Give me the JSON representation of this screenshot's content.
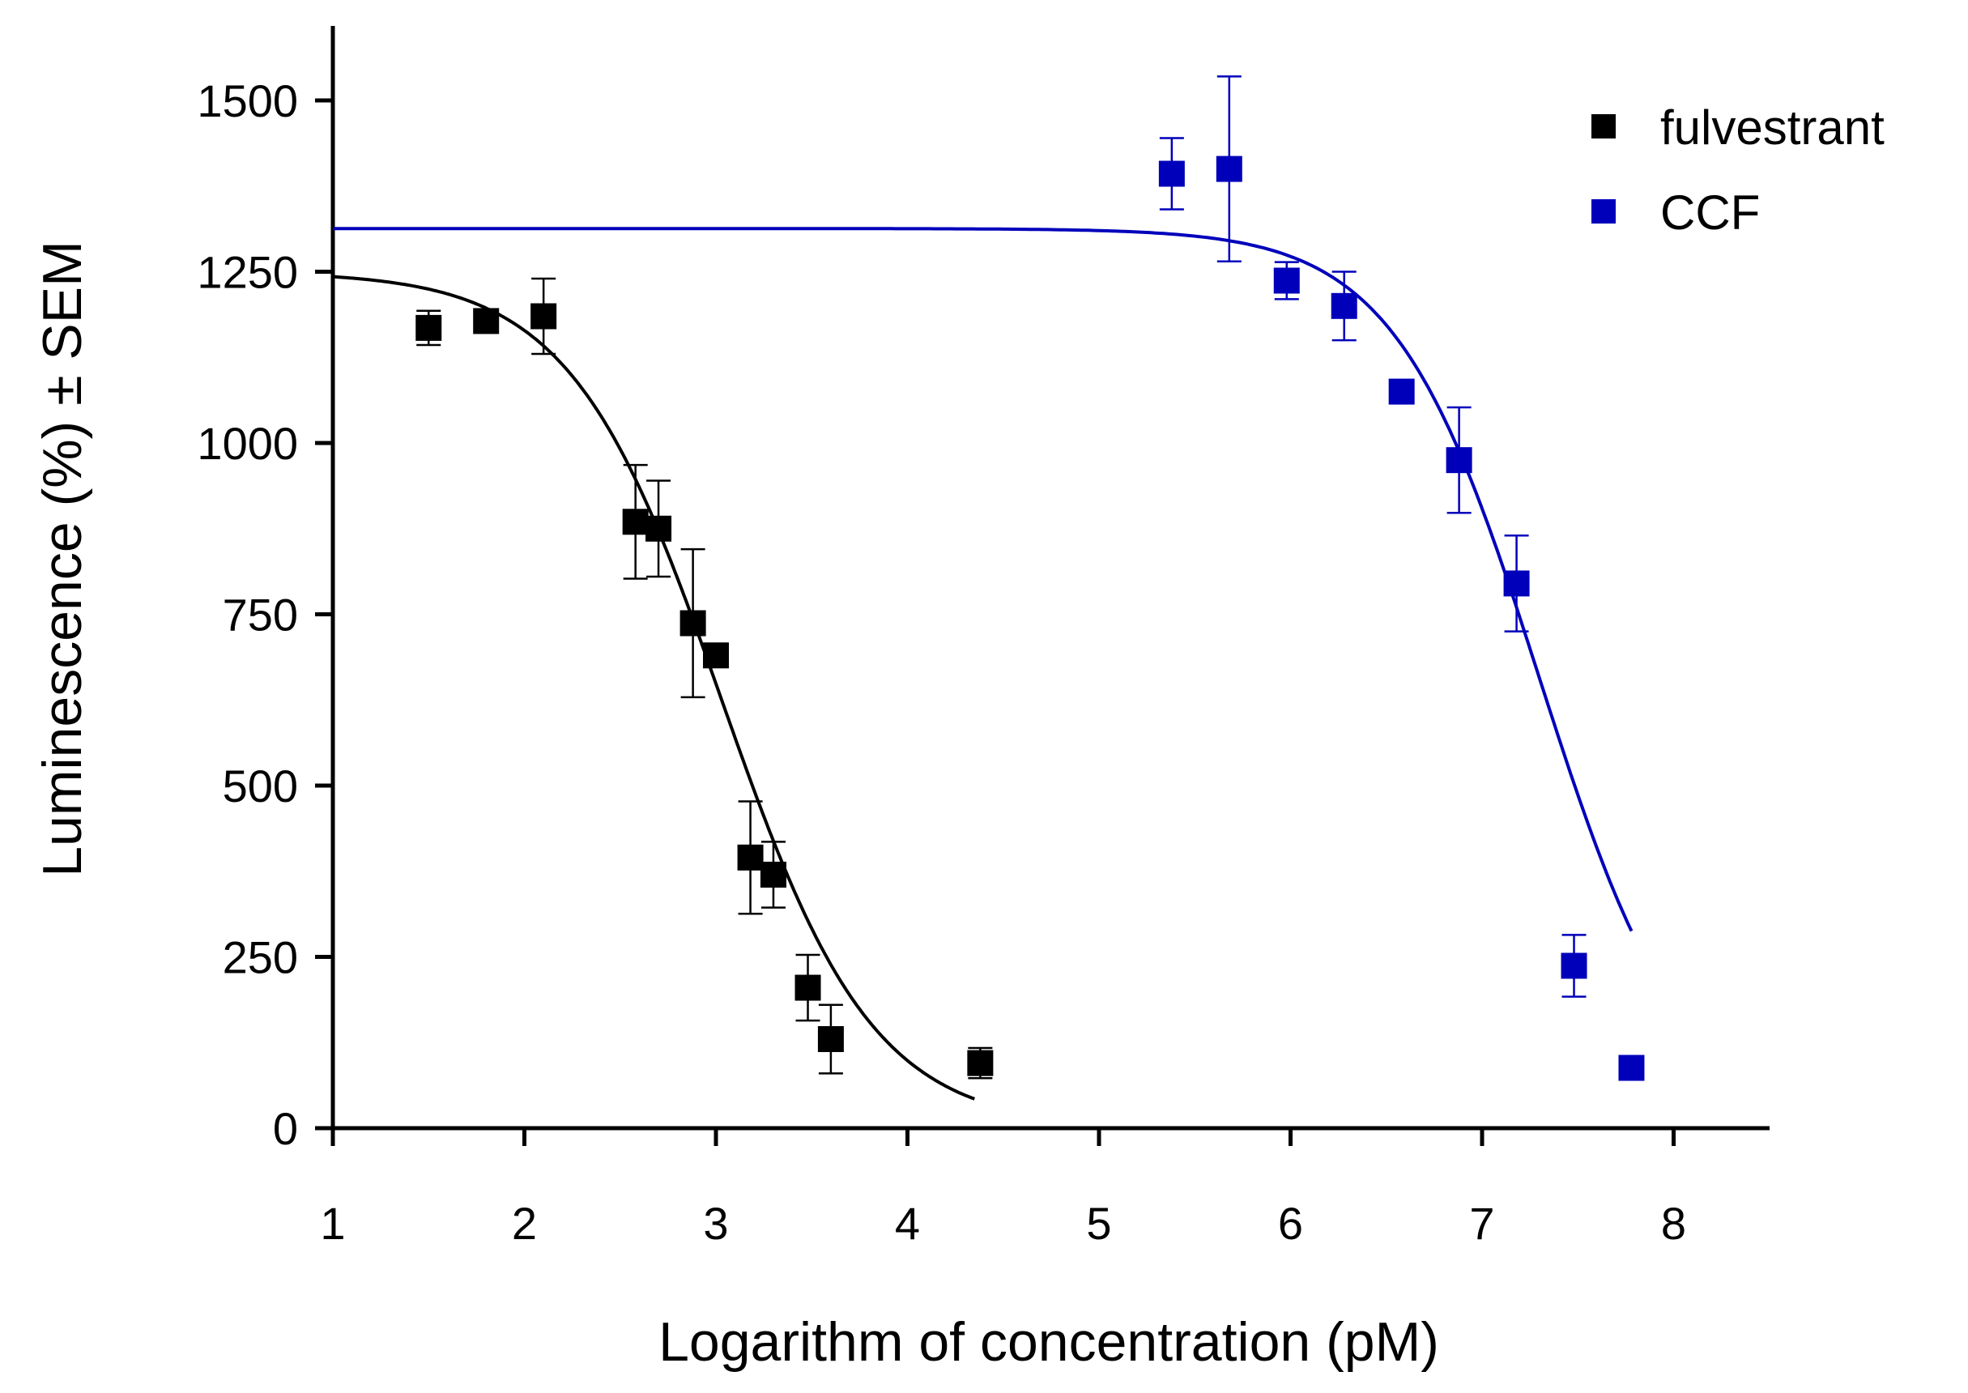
{
  "chart_data": {
    "type": "scatter",
    "title": "",
    "xlabel": "Logarithm of concentration (pM)",
    "ylabel": "Luminescence (%) ± SEM",
    "xlim": [
      1,
      8.5
    ],
    "ylim": [
      0,
      1600
    ],
    "xticks": [
      1,
      2,
      3,
      4,
      5,
      6,
      7,
      8
    ],
    "yticks": [
      0,
      250,
      500,
      750,
      1000,
      1250,
      1500
    ],
    "legend_position": "top-right",
    "series": [
      {
        "name": "fulvestrant",
        "color": "#000000",
        "marker": "square",
        "points": [
          {
            "x": 1.5,
            "y": 1168,
            "err": 25
          },
          {
            "x": 1.8,
            "y": 1178,
            "err": 0
          },
          {
            "x": 2.1,
            "y": 1185,
            "err": 55
          },
          {
            "x": 2.58,
            "y": 885,
            "err": 83
          },
          {
            "x": 2.7,
            "y": 875,
            "err": 70
          },
          {
            "x": 2.88,
            "y": 737,
            "err": 108
          },
          {
            "x": 3.0,
            "y": 690,
            "err": 0
          },
          {
            "x": 3.18,
            "y": 395,
            "err": 82
          },
          {
            "x": 3.3,
            "y": 370,
            "err": 48
          },
          {
            "x": 3.48,
            "y": 205,
            "err": 48
          },
          {
            "x": 3.6,
            "y": 130,
            "err": 50
          },
          {
            "x": 4.38,
            "y": 95,
            "err": 22
          }
        ],
        "fit": {
          "top": 1250,
          "bottom": 0,
          "logIC50": 3.03,
          "hill": -1.1,
          "x_range": [
            1.0,
            4.35
          ]
        }
      },
      {
        "name": "CCF",
        "color": "#0000bb",
        "marker": "square",
        "points": [
          {
            "x": 5.38,
            "y": 1393,
            "err": 52
          },
          {
            "x": 5.68,
            "y": 1400,
            "err": 135
          },
          {
            "x": 5.98,
            "y": 1237,
            "err": 27
          },
          {
            "x": 6.28,
            "y": 1200,
            "err": 50
          },
          {
            "x": 6.58,
            "y": 1075,
            "err": 0
          },
          {
            "x": 6.88,
            "y": 975,
            "err": 77
          },
          {
            "x": 7.18,
            "y": 795,
            "err": 70
          },
          {
            "x": 7.48,
            "y": 237,
            "err": 45
          },
          {
            "x": 7.78,
            "y": 88,
            "err": 0
          }
        ],
        "fit": {
          "top": 1313,
          "bottom": 0,
          "logIC50": 7.3,
          "hill": -1.15,
          "x_range": [
            1.0,
            7.78
          ]
        }
      }
    ]
  }
}
